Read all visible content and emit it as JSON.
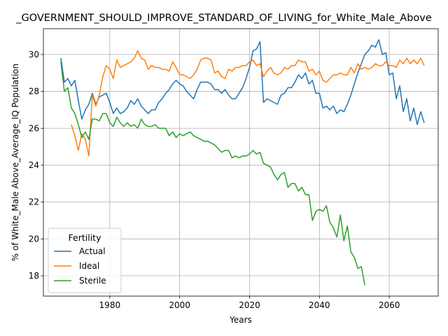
{
  "chart_data": {
    "type": "line",
    "title": "_GOVERNMENT_SHOULD_IMPROVE_STANDARD_OF_LIVING_for_White_Male_Above",
    "xlabel": "Years",
    "ylabel": "% of White_Male Above_Average_IQ Population",
    "xlim": [
      1961,
      2074
    ],
    "ylim": [
      16.9,
      31.4
    ],
    "xticks": [
      1980,
      2000,
      2020,
      2040,
      2060
    ],
    "yticks": [
      18,
      20,
      22,
      24,
      26,
      28,
      30
    ],
    "grid": true,
    "legend": {
      "title": "Fertility",
      "position": "lower-left"
    },
    "series": [
      {
        "name": "Actual",
        "color": "#1f77b4",
        "x": [
          1966,
          1967,
          1968,
          1969,
          1970,
          1971,
          1972,
          1973,
          1974,
          1975,
          1976,
          1977,
          1978,
          1979,
          1980,
          1981,
          1982,
          1983,
          1984,
          1985,
          1986,
          1987,
          1988,
          1989,
          1990,
          1991,
          1992,
          1993,
          1994,
          1995,
          1996,
          1997,
          1998,
          1999,
          2000,
          2001,
          2002,
          2003,
          2004,
          2005,
          2006,
          2007,
          2008,
          2009,
          2010,
          2011,
          2012,
          2013,
          2014,
          2015,
          2016,
          2017,
          2018,
          2019,
          2020,
          2021,
          2022,
          2023,
          2024,
          2025,
          2026,
          2027,
          2028,
          2029,
          2030,
          2031,
          2032,
          2033,
          2034,
          2035,
          2036,
          2037,
          2038,
          2039,
          2040,
          2041,
          2042,
          2043,
          2044,
          2045,
          2046,
          2047,
          2048,
          2049,
          2050,
          2051,
          2052,
          2053,
          2054,
          2055,
          2056,
          2057,
          2058,
          2059,
          2060,
          2061,
          2062,
          2063,
          2064,
          2065,
          2066,
          2067,
          2068,
          2069,
          2070
        ],
        "values": [
          29.8,
          28.5,
          28.7,
          28.3,
          28.6,
          27.5,
          26.5,
          27.0,
          27.3,
          27.9,
          27.3,
          27.7,
          27.8,
          27.9,
          27.4,
          26.8,
          27.1,
          26.8,
          26.9,
          27.1,
          27.5,
          27.3,
          27.6,
          27.2,
          27.0,
          26.8,
          27.0,
          27.0,
          27.4,
          27.6,
          27.9,
          28.1,
          28.4,
          28.6,
          28.4,
          28.3,
          28.0,
          27.8,
          27.6,
          28.1,
          28.5,
          28.5,
          28.5,
          28.4,
          28.1,
          28.1,
          27.9,
          28.1,
          27.8,
          27.6,
          27.6,
          27.9,
          28.2,
          28.7,
          29.3,
          30.2,
          30.3,
          30.7,
          27.4,
          27.6,
          27.5,
          27.4,
          27.3,
          27.8,
          27.9,
          28.2,
          28.2,
          28.5,
          28.9,
          28.7,
          29.0,
          28.4,
          28.6,
          27.9,
          27.9,
          27.1,
          27.2,
          27.0,
          27.2,
          26.8,
          27.0,
          26.9,
          27.3,
          27.8,
          28.4,
          29.0,
          29.5,
          30.0,
          30.2,
          30.5,
          30.4,
          30.8,
          30.0,
          30.1,
          28.9,
          29.0,
          27.6,
          28.3,
          26.9,
          27.6,
          26.4,
          27.1,
          26.2,
          26.9,
          26.3
        ]
      },
      {
        "name": "Ideal",
        "color": "#ff7f0e",
        "x": [
          1969,
          1970,
          1971,
          1972,
          1973,
          1974,
          1975,
          1976,
          1977,
          1978,
          1979,
          1980,
          1981,
          1982,
          1983,
          1984,
          1985,
          1986,
          1987,
          1988,
          1989,
          1990,
          1991,
          1992,
          1993,
          1994,
          1995,
          1996,
          1997,
          1998,
          1999,
          2000,
          2001,
          2002,
          2003,
          2004,
          2005,
          2006,
          2007,
          2008,
          2009,
          2010,
          2011,
          2012,
          2013,
          2014,
          2015,
          2016,
          2017,
          2018,
          2019,
          2020,
          2021,
          2022,
          2023,
          2024,
          2025,
          2026,
          2027,
          2028,
          2029,
          2030,
          2031,
          2032,
          2033,
          2034,
          2035,
          2036,
          2037,
          2038,
          2039,
          2040,
          2041,
          2042,
          2043,
          2044,
          2045,
          2046,
          2047,
          2048,
          2049,
          2050,
          2051,
          2052,
          2053,
          2054,
          2055,
          2056,
          2057,
          2058,
          2059,
          2060,
          2061,
          2062,
          2063,
          2064,
          2065,
          2066,
          2067,
          2068,
          2069,
          2070
        ],
        "values": [
          26.2,
          25.6,
          24.8,
          25.7,
          25.4,
          24.5,
          27.8,
          27.2,
          27.8,
          28.8,
          29.4,
          29.2,
          28.7,
          29.7,
          29.3,
          29.4,
          29.5,
          29.6,
          29.8,
          30.2,
          29.8,
          29.7,
          29.2,
          29.4,
          29.3,
          29.3,
          29.2,
          29.2,
          29.1,
          29.6,
          29.3,
          28.9,
          28.9,
          28.8,
          28.7,
          28.9,
          29.2,
          29.7,
          29.8,
          29.8,
          29.7,
          29.0,
          29.1,
          28.8,
          28.7,
          29.2,
          29.1,
          29.3,
          29.3,
          29.4,
          29.4,
          29.6,
          29.7,
          29.4,
          29.5,
          28.8,
          29.1,
          29.3,
          29.0,
          28.9,
          29.0,
          29.3,
          29.2,
          29.4,
          29.4,
          29.7,
          29.6,
          29.6,
          29.1,
          29.2,
          28.9,
          29.1,
          28.6,
          28.5,
          28.7,
          28.9,
          28.9,
          29.0,
          28.9,
          28.9,
          29.3,
          29.0,
          29.5,
          29.2,
          29.3,
          29.2,
          29.3,
          29.5,
          29.4,
          29.4,
          29.6,
          29.4,
          29.4,
          29.3,
          29.7,
          29.5,
          29.8,
          29.5,
          29.7,
          29.5,
          29.8,
          29.4
        ]
      },
      {
        "name": "Sterile",
        "color": "#2ca02c",
        "x": [
          1966,
          1967,
          1968,
          1969,
          1970,
          1971,
          1972,
          1973,
          1974,
          1975,
          1976,
          1977,
          1978,
          1979,
          1980,
          1981,
          1982,
          1983,
          1984,
          1985,
          1986,
          1987,
          1988,
          1989,
          1990,
          1991,
          1992,
          1993,
          1994,
          1995,
          1996,
          1997,
          1998,
          1999,
          2000,
          2001,
          2002,
          2003,
          2004,
          2005,
          2006,
          2007,
          2008,
          2009,
          2010,
          2011,
          2012,
          2013,
          2014,
          2015,
          2016,
          2017,
          2018,
          2019,
          2020,
          2021,
          2022,
          2023,
          2024,
          2025,
          2026,
          2027,
          2028,
          2029,
          2030,
          2031,
          2032,
          2033,
          2034,
          2035,
          2036,
          2037,
          2038,
          2039,
          2040,
          2041,
          2042,
          2043,
          2044,
          2045,
          2046,
          2047,
          2048,
          2049,
          2050,
          2051,
          2052,
          2053
        ],
        "values": [
          29.6,
          28.0,
          28.2,
          27.1,
          26.8,
          26.2,
          25.5,
          25.8,
          25.4,
          26.5,
          26.5,
          26.4,
          26.8,
          26.8,
          26.3,
          26.1,
          26.6,
          26.3,
          26.1,
          26.3,
          26.1,
          26.2,
          26.0,
          26.5,
          26.2,
          26.1,
          26.1,
          26.2,
          26.0,
          26.0,
          26.0,
          25.6,
          25.8,
          25.5,
          25.7,
          25.6,
          25.7,
          25.8,
          25.6,
          25.5,
          25.4,
          25.3,
          25.3,
          25.2,
          25.1,
          24.9,
          24.7,
          24.8,
          24.8,
          24.4,
          24.5,
          24.4,
          24.5,
          24.5,
          24.6,
          24.8,
          24.6,
          24.7,
          24.1,
          24.0,
          23.9,
          23.5,
          23.2,
          23.5,
          23.6,
          22.8,
          23.0,
          23.0,
          22.6,
          22.8,
          22.4,
          22.4,
          21.0,
          21.5,
          21.6,
          21.5,
          21.8,
          20.9,
          20.6,
          20.1,
          21.3,
          19.9,
          20.7,
          19.3,
          19.0,
          18.4,
          18.5,
          17.5
        ]
      }
    ]
  }
}
